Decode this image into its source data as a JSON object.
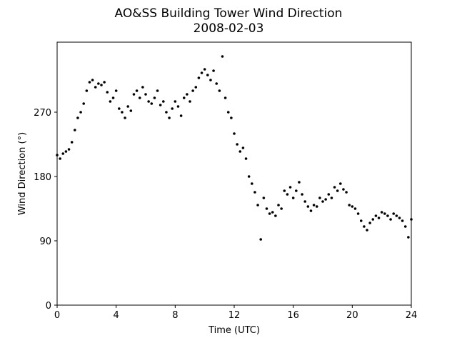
{
  "chart_data": {
    "type": "scatter",
    "title": "AO&SS Building Tower Wind Direction",
    "subtitle": "2008-02-03",
    "x_label": "Time (UTC)",
    "y_label": "Wind Direction (°)",
    "color": "#000000",
    "xlim": [
      0,
      24
    ],
    "xticks": [
      0,
      4,
      8,
      12,
      16,
      20,
      24
    ],
    "ylim": [
      0,
      368
    ],
    "yticks": [
      0,
      90,
      180,
      270
    ],
    "x": [
      0,
      0.2,
      0.4,
      0.6,
      0.8,
      1,
      1.2,
      1.4,
      1.6,
      1.8,
      2,
      2.2,
      2.4,
      2.6,
      2.8,
      3,
      3.2,
      3.4,
      3.6,
      3.8,
      4,
      4.2,
      4.4,
      4.6,
      4.8,
      5,
      5.2,
      5.4,
      5.6,
      5.8,
      6,
      6.2,
      6.4,
      6.6,
      6.8,
      7,
      7.2,
      7.4,
      7.6,
      7.8,
      8,
      8.2,
      8.4,
      8.6,
      8.8,
      9,
      9.2,
      9.4,
      9.6,
      9.8,
      10,
      10.2,
      10.4,
      10.6,
      10.8,
      11,
      11.2,
      11.4,
      11.6,
      11.8,
      12,
      12.2,
      12.4,
      12.6,
      12.8,
      13,
      13.2,
      13.4,
      13.6,
      13.8,
      14,
      14.2,
      14.4,
      14.6,
      14.8,
      15,
      15.2,
      15.4,
      15.6,
      15.8,
      16,
      16.2,
      16.4,
      16.6,
      16.8,
      17,
      17.2,
      17.4,
      17.6,
      17.8,
      18,
      18.2,
      18.4,
      18.6,
      18.8,
      19,
      19.2,
      19.4,
      19.6,
      19.8,
      20,
      20.2,
      20.4,
      20.6,
      20.8,
      21,
      21.2,
      21.4,
      21.6,
      21.8,
      22,
      22.2,
      22.4,
      22.6,
      22.8,
      23,
      23.2,
      23.4,
      23.6,
      23.8,
      24
    ],
    "values": [
      210,
      205,
      212,
      215,
      218,
      228,
      245,
      262,
      270,
      282,
      300,
      312,
      315,
      305,
      310,
      308,
      312,
      298,
      285,
      290,
      300,
      275,
      270,
      262,
      278,
      272,
      295,
      300,
      290,
      305,
      295,
      285,
      282,
      290,
      300,
      280,
      285,
      270,
      262,
      275,
      285,
      278,
      265,
      290,
      295,
      285,
      300,
      305,
      318,
      325,
      330,
      322,
      315,
      328,
      310,
      300,
      348,
      290,
      270,
      262,
      240,
      225,
      215,
      220,
      205,
      180,
      170,
      158,
      140,
      92,
      150,
      135,
      128,
      130,
      125,
      140,
      135,
      160,
      155,
      165,
      150,
      160,
      172,
      155,
      145,
      138,
      132,
      140,
      138,
      150,
      145,
      148,
      155,
      150,
      165,
      160,
      170,
      162,
      158,
      140,
      138,
      135,
      128,
      118,
      110,
      105,
      115,
      120,
      125,
      122,
      130,
      128,
      125,
      120,
      128,
      125,
      122,
      118,
      110,
      95,
      120
    ]
  }
}
